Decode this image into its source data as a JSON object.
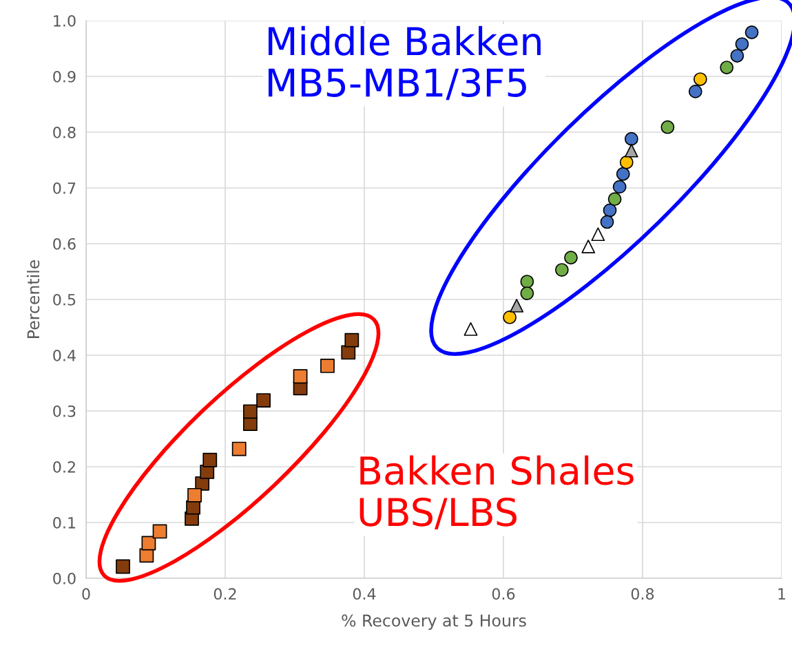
{
  "chart_data": {
    "type": "scatter",
    "xlabel": "% Recovery at 5 Hours",
    "ylabel": "Percentile",
    "xlim": [
      0,
      1
    ],
    "xticks": [
      0,
      0.2,
      0.4,
      0.6,
      0.8,
      1
    ],
    "ylim": [
      0,
      1
    ],
    "yticks": [
      {
        "value": 0,
        "label": "0.0"
      },
      0.1,
      0.2,
      0.3,
      0.4,
      0.5,
      0.6,
      0.7,
      0.8,
      0.9,
      {
        "value": 1,
        "label": "1.0"
      }
    ],
    "grid": true,
    "legend": false,
    "annotations": [
      "Middle Bakken\nMB5-MB1/3F5",
      "Bakken Shales\nUBS/LBS"
    ],
    "series": [
      {
        "color": "#843c0c",
        "marker": "square",
        "x": [
          0.053,
          0.152,
          0.154,
          0.167,
          0.174,
          0.178,
          0.236,
          0.236,
          0.255,
          0.308,
          0.377,
          0.382
        ],
        "values": [
          0.021,
          0.107,
          0.127,
          0.17,
          0.191,
          0.212,
          0.277,
          0.299,
          0.319,
          0.341,
          0.405,
          0.427
        ]
      },
      {
        "color": "#ed7d31",
        "marker": "square",
        "x": [
          0.087,
          0.09,
          0.106,
          0.156,
          0.22,
          0.308,
          0.347
        ],
        "values": [
          0.041,
          0.063,
          0.084,
          0.149,
          0.232,
          0.362,
          0.381
        ]
      },
      {
        "color": "#4472c4",
        "marker": "circle",
        "x": [
          0.957,
          0.943,
          0.936,
          0.876,
          0.784,
          0.772,
          0.767,
          0.753,
          0.749
        ],
        "values": [
          0.979,
          0.958,
          0.937,
          0.873,
          0.788,
          0.725,
          0.702,
          0.66,
          0.639
        ]
      },
      {
        "color": "#70ad47",
        "marker": "circle",
        "x": [
          0.921,
          0.836,
          0.76,
          0.697,
          0.684,
          0.634,
          0.634
        ],
        "values": [
          0.916,
          0.809,
          0.68,
          0.575,
          0.553,
          0.532,
          0.511
        ]
      },
      {
        "color": "#ffc000",
        "marker": "circle",
        "x": [
          0.883,
          0.777,
          0.609
        ],
        "values": [
          0.895,
          0.746,
          0.468
        ]
      },
      {
        "color": "#a5a5a5",
        "marker": "triangle",
        "x": [
          0.784,
          0.619
        ],
        "values": [
          0.767,
          0.489
        ]
      },
      {
        "color": "#ffffff",
        "marker": "triangle",
        "x": [
          0.736,
          0.722,
          0.553
        ],
        "values": [
          0.617,
          0.595,
          0.447
        ]
      }
    ]
  }
}
